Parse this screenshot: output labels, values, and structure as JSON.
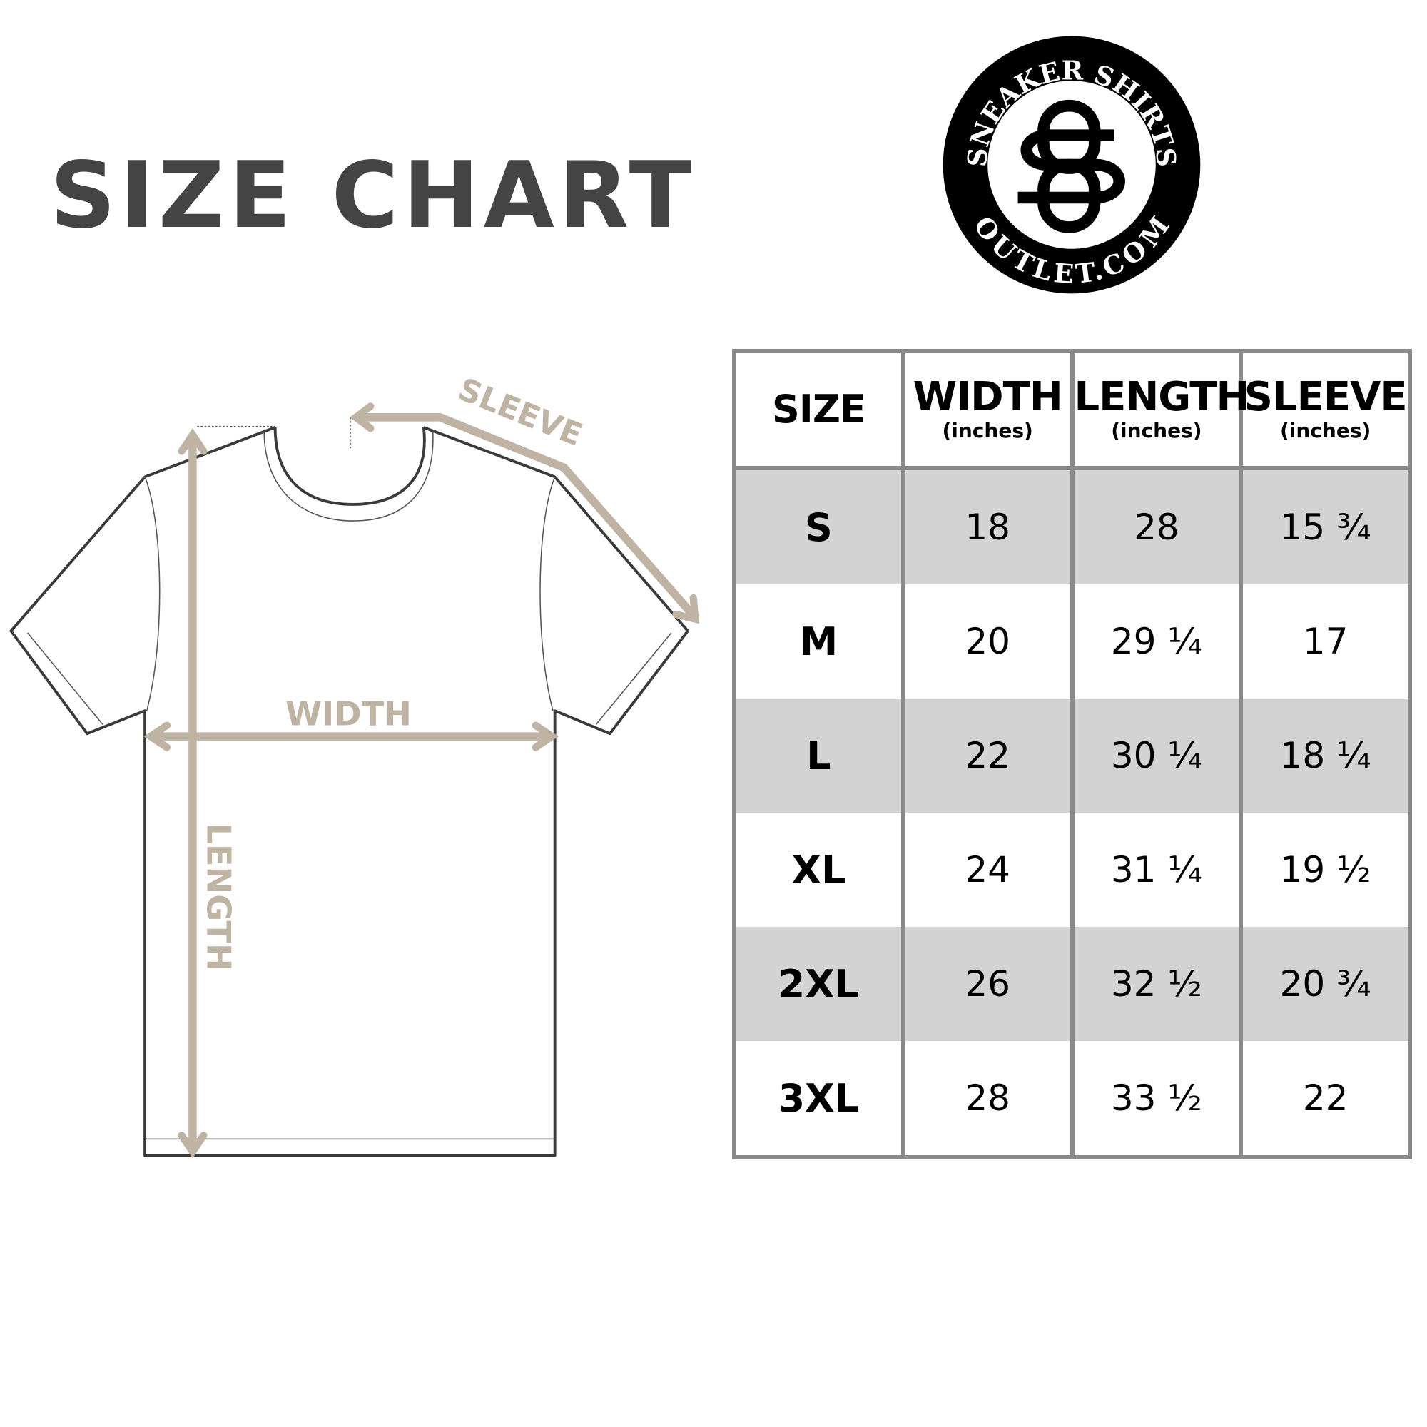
{
  "title": "SIZE CHART",
  "logo": {
    "top_text": "SNEAKER SHIRTS",
    "bottom_text": "OUTLET.COM",
    "monogram": "SSO"
  },
  "diagram": {
    "sleeve_label": "SLEEVE",
    "width_label": "WIDTH",
    "length_label": "LENGTH",
    "arrow_color": "#bfb3a4"
  },
  "table": {
    "headers": [
      {
        "label": "SIZE",
        "unit": ""
      },
      {
        "label": "WIDTH",
        "unit": "(inches)"
      },
      {
        "label": "LENGTH",
        "unit": "(inches)"
      },
      {
        "label": "SLEEVE",
        "unit": "(inches)"
      }
    ],
    "rows": [
      [
        "S",
        "18",
        "28",
        "15 ¾"
      ],
      [
        "M",
        "20",
        "29 ¼",
        "17"
      ],
      [
        "L",
        "22",
        "30 ¼",
        "18 ¼"
      ],
      [
        "XL",
        "24",
        "31 ¼",
        "19 ½"
      ],
      [
        "2XL",
        "26",
        "32 ½",
        "20 ¾"
      ],
      [
        "3XL",
        "28",
        "33 ½",
        "22"
      ]
    ],
    "shade_color": "#d3d3d3",
    "border_color": "#8a8a8a"
  }
}
